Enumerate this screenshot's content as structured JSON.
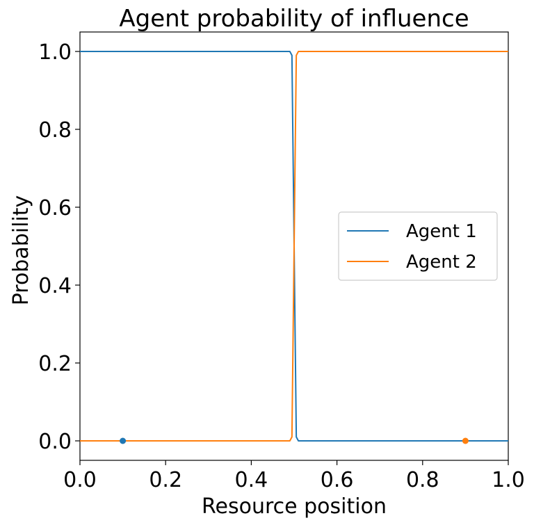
{
  "chart_data": {
    "type": "line",
    "title": "Agent probability of influence",
    "xlabel": "Resource position",
    "ylabel": "Probability",
    "xlim": [
      0.0,
      1.0
    ],
    "ylim": [
      -0.05,
      1.05
    ],
    "xticks": [
      "0.0",
      "0.2",
      "0.4",
      "0.6",
      "0.8",
      "1.0"
    ],
    "yticks": [
      "0.0",
      "0.2",
      "0.4",
      "0.6",
      "0.8",
      "1.0"
    ],
    "grid": false,
    "legend_position": "center-right",
    "series": [
      {
        "name": "Agent 1",
        "color": "#1f77b4",
        "x": [
          0.0,
          0.49,
          0.4949,
          0.5051,
          0.51,
          1.0
        ],
        "y": [
          1.0,
          1.0,
          0.99,
          0.01,
          0.0,
          0.0
        ]
      },
      {
        "name": "Agent 2",
        "color": "#ff7f0e",
        "x": [
          0.0,
          0.49,
          0.4949,
          0.5051,
          0.51,
          1.0
        ],
        "y": [
          0.0,
          0.0,
          0.01,
          0.99,
          1.0,
          1.0
        ]
      }
    ],
    "points": [
      {
        "x": 0.1,
        "y": 0.0,
        "color": "#1f77b4"
      },
      {
        "x": 0.9,
        "y": 0.0,
        "color": "#ff7f0e"
      }
    ]
  }
}
